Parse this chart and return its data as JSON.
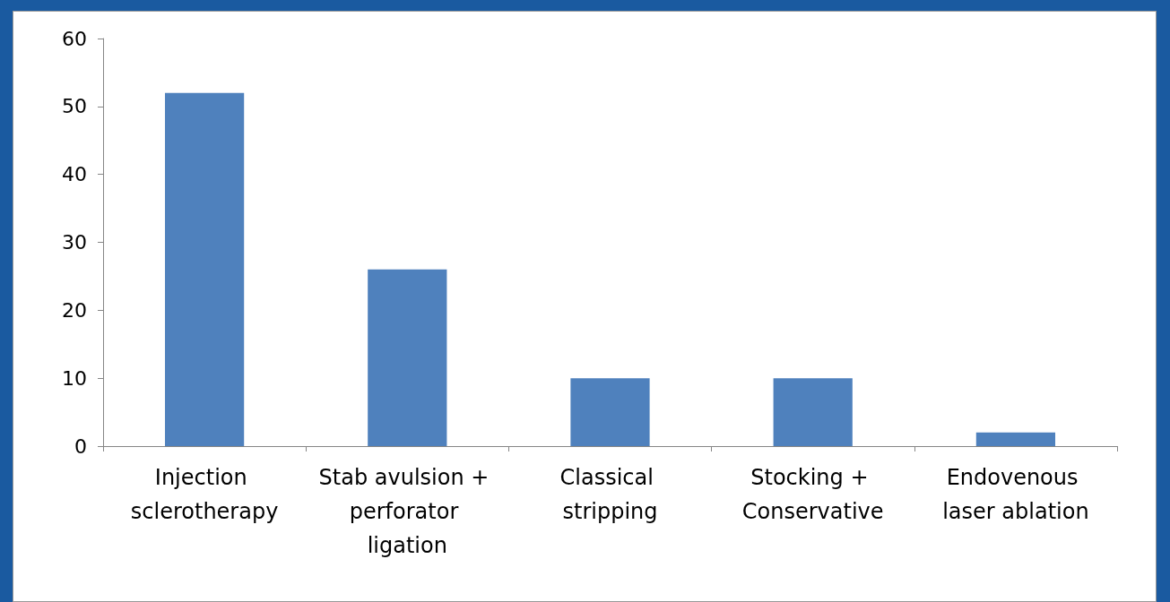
{
  "chart_data": {
    "type": "bar",
    "categories": [
      "Injection sclerotherapy",
      "Stab avulsion + perforator ligation",
      "Classical stripping",
      "Stocking + Conservative",
      "Endovenous laser ablation"
    ],
    "values": [
      52,
      26,
      10,
      10,
      2
    ],
    "color": "#4f81bd",
    "ylim": [
      0,
      60
    ],
    "yticks": [
      0,
      10,
      20,
      30,
      40,
      50,
      60
    ],
    "grid": false
  }
}
